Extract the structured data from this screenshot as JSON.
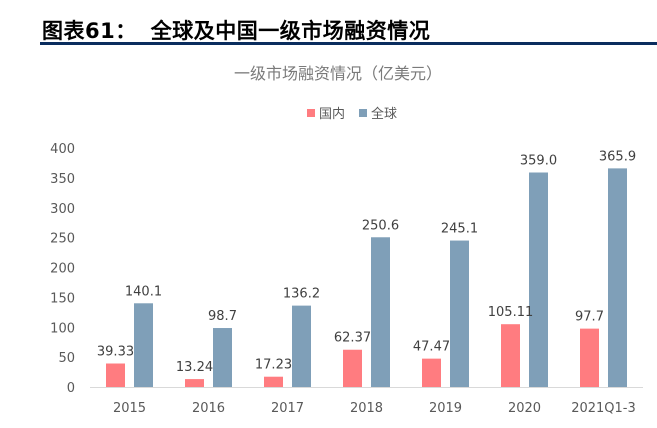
{
  "figure": {
    "label": "图表61：",
    "title": "全球及中国一级市场融资情况"
  },
  "chart_data": {
    "type": "bar",
    "title": "一级市场融资情况（亿美元）",
    "categories": [
      "2015",
      "2016",
      "2017",
      "2018",
      "2019",
      "2020",
      "2021Q1-3"
    ],
    "series": [
      {
        "name": "国内",
        "color": "#ff7c80",
        "values": [
          39.33,
          13.24,
          17.23,
          62.37,
          47.47,
          105.11,
          97.7
        ],
        "labels": [
          "39.33",
          "13.24",
          "17.23",
          "62.37",
          "47.47",
          "105.11",
          "97.7"
        ]
      },
      {
        "name": "全球",
        "color": "#7f9fb8",
        "values": [
          140.1,
          98.7,
          136.2,
          250.6,
          245.1,
          359.0,
          365.9
        ],
        "labels": [
          "140.1",
          "98.7",
          "136.2",
          "250.6",
          "245.1",
          "359.0",
          "365.9"
        ]
      }
    ],
    "ylim": [
      0,
      400
    ],
    "yticks": [
      "0",
      "50",
      "100",
      "150",
      "200",
      "250",
      "300",
      "350",
      "400"
    ],
    "xlabel": "",
    "ylabel": "",
    "legend": "top-center",
    "grid": false
  }
}
